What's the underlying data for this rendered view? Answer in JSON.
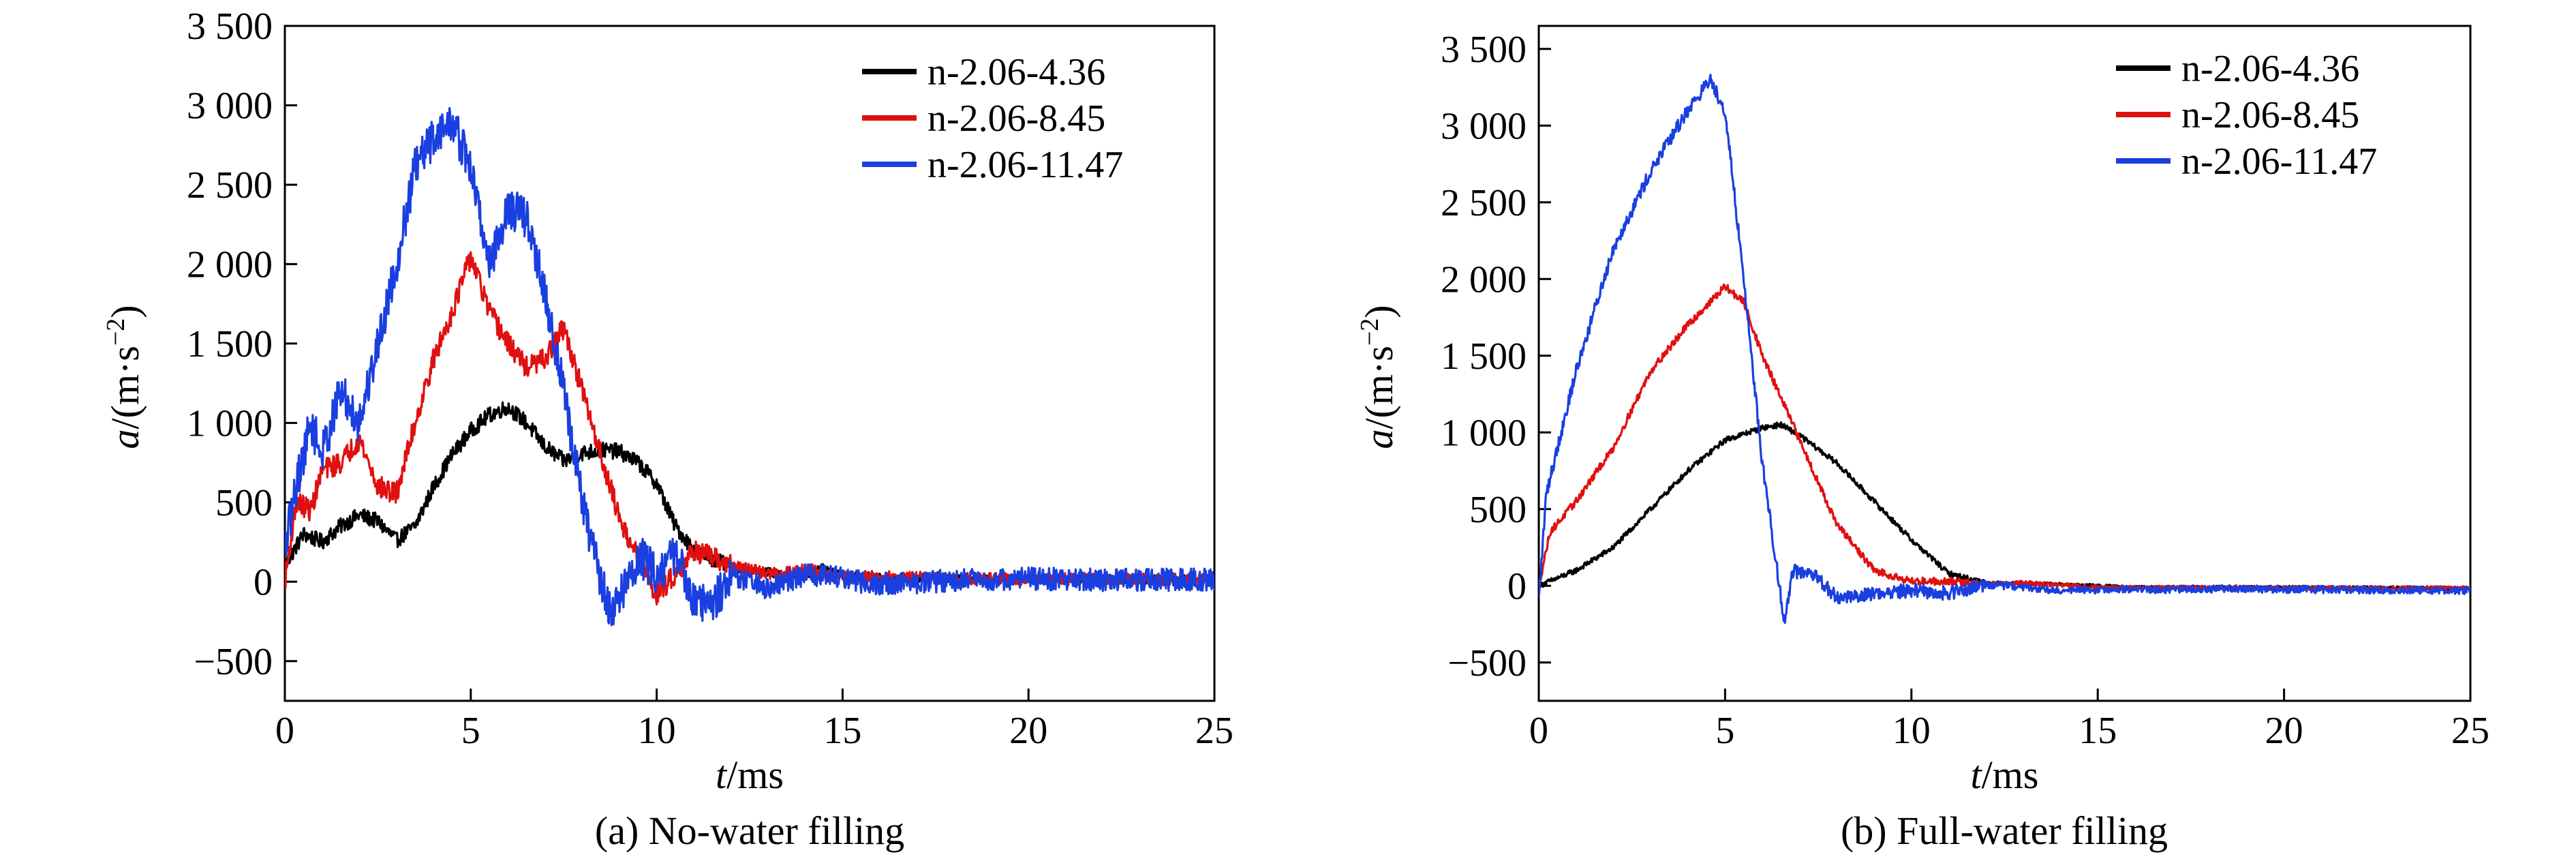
{
  "chart_data": [
    {
      "type": "line",
      "title": "",
      "caption": "(a) No-water filling",
      "xlabel_italic": "t",
      "xlabel_rest": "/ms",
      "ylabel_italic": "a",
      "ylabel_rest": "/(m·s",
      "ylabel_sup": "−2",
      "ylabel_close": ")",
      "xlim": [
        0,
        25
      ],
      "ylim": [
        -750,
        3500
      ],
      "xticks": [
        0,
        5,
        10,
        15,
        20,
        25
      ],
      "xtick_labels": [
        "0",
        "5",
        "10",
        "15",
        "20",
        "25"
      ],
      "yticks": [
        -500,
        0,
        500,
        1000,
        1500,
        2000,
        2500,
        3000,
        3500
      ],
      "ytick_labels": [
        "−500",
        "0",
        "500",
        "1 000",
        "1 500",
        "2 000",
        "2 500",
        "3 000",
        "3 500"
      ],
      "grid": false,
      "legend_position": "top-right",
      "series": [
        {
          "name": "n-2.06-4.36",
          "color": "#000000",
          "noise": 50,
          "points": [
            [
              0,
              100
            ],
            [
              0.5,
              300
            ],
            [
              1,
              250
            ],
            [
              1.5,
              350
            ],
            [
              2,
              420
            ],
            [
              2.5,
              380
            ],
            [
              3,
              260
            ],
            [
              3.5,
              350
            ],
            [
              4,
              600
            ],
            [
              4.5,
              800
            ],
            [
              5,
              950
            ],
            [
              5.5,
              1050
            ],
            [
              6,
              1100
            ],
            [
              6.5,
              1000
            ],
            [
              7,
              850
            ],
            [
              7.5,
              760
            ],
            [
              8,
              810
            ],
            [
              8.5,
              830
            ],
            [
              9,
              820
            ],
            [
              9.5,
              750
            ],
            [
              10,
              620
            ],
            [
              10.5,
              350
            ],
            [
              11,
              200
            ],
            [
              12,
              90
            ],
            [
              13,
              60
            ],
            [
              14,
              30
            ],
            [
              14.5,
              90
            ],
            [
              15,
              40
            ],
            [
              16,
              30
            ],
            [
              18,
              20
            ],
            [
              20,
              15
            ],
            [
              22,
              15
            ],
            [
              25,
              15
            ]
          ]
        },
        {
          "name": "n-2.06-8.45",
          "color": "#e01010",
          "noise": 70,
          "points": [
            [
              0,
              0
            ],
            [
              0.3,
              500
            ],
            [
              0.7,
              450
            ],
            [
              1,
              700
            ],
            [
              1.5,
              750
            ],
            [
              2,
              900
            ],
            [
              2.5,
              600
            ],
            [
              3,
              550
            ],
            [
              3.5,
              1000
            ],
            [
              4,
              1400
            ],
            [
              4.5,
              1700
            ],
            [
              5,
              2050
            ],
            [
              5.5,
              1700
            ],
            [
              6,
              1500
            ],
            [
              6.5,
              1350
            ],
            [
              7,
              1400
            ],
            [
              7.5,
              1600
            ],
            [
              8,
              1200
            ],
            [
              8.5,
              800
            ],
            [
              9,
              400
            ],
            [
              9.5,
              150
            ],
            [
              10,
              -80
            ],
            [
              10.5,
              50
            ],
            [
              11,
              200
            ],
            [
              12,
              100
            ],
            [
              13,
              50
            ],
            [
              14,
              80
            ],
            [
              15,
              30
            ],
            [
              16,
              30
            ],
            [
              18,
              20
            ],
            [
              20,
              15
            ],
            [
              22,
              20
            ],
            [
              25,
              10
            ]
          ]
        },
        {
          "name": "n-2.06-11.47",
          "color": "#1a3fe0",
          "noise": 130,
          "points": [
            [
              0,
              200
            ],
            [
              0.3,
              600
            ],
            [
              0.7,
              1000
            ],
            [
              1,
              800
            ],
            [
              1.5,
              1200
            ],
            [
              2,
              1000
            ],
            [
              2.5,
              1500
            ],
            [
              3,
              2000
            ],
            [
              3.5,
              2600
            ],
            [
              4,
              2800
            ],
            [
              4.5,
              2900
            ],
            [
              5,
              2600
            ],
            [
              5.5,
              2000
            ],
            [
              6,
              2350
            ],
            [
              6.5,
              2300
            ],
            [
              7,
              1800
            ],
            [
              7.5,
              1200
            ],
            [
              8,
              500
            ],
            [
              8.5,
              0
            ],
            [
              8.8,
              -200
            ],
            [
              9.2,
              0
            ],
            [
              9.6,
              150
            ],
            [
              10,
              50
            ],
            [
              10.5,
              180
            ],
            [
              11,
              -100
            ],
            [
              11.5,
              -150
            ],
            [
              12,
              50
            ],
            [
              13,
              -50
            ],
            [
              14,
              50
            ],
            [
              15,
              20
            ],
            [
              16,
              -20
            ],
            [
              18,
              10
            ],
            [
              20,
              20
            ],
            [
              22,
              10
            ],
            [
              25,
              15
            ]
          ]
        }
      ]
    },
    {
      "type": "line",
      "title": "",
      "caption": "(b) Full-water filling",
      "xlabel_italic": "t",
      "xlabel_rest": "/ms",
      "ylabel_italic": "a",
      "ylabel_rest": "/(m·s",
      "ylabel_sup": "−2",
      "ylabel_close": ")",
      "xlim": [
        0,
        25
      ],
      "ylim": [
        -750,
        3650
      ],
      "xticks": [
        0,
        5,
        10,
        15,
        20,
        25
      ],
      "xtick_labels": [
        "0",
        "5",
        "10",
        "15",
        "20",
        "25"
      ],
      "yticks": [
        -500,
        0,
        500,
        1000,
        1500,
        2000,
        2500,
        3000,
        3500
      ],
      "ytick_labels": [
        "−500",
        "0",
        "500",
        "1 000",
        "1 500",
        "2 000",
        "2 500",
        "3 000",
        "3 500"
      ],
      "grid": false,
      "legend_position": "top-right",
      "series": [
        {
          "name": "n-2.06-4.36",
          "color": "#000000",
          "noise": 18,
          "points": [
            [
              0,
              0
            ],
            [
              1,
              100
            ],
            [
              2,
              250
            ],
            [
              3,
              500
            ],
            [
              4,
              750
            ],
            [
              5,
              950
            ],
            [
              6,
              1030
            ],
            [
              6.5,
              1050
            ],
            [
              7,
              980
            ],
            [
              8,
              800
            ],
            [
              9,
              550
            ],
            [
              10,
              300
            ],
            [
              11,
              80
            ],
            [
              12,
              20
            ],
            [
              14,
              10
            ],
            [
              16,
              -10
            ],
            [
              20,
              -10
            ],
            [
              25,
              -15
            ]
          ]
        },
        {
          "name": "n-2.06-8.45",
          "color": "#e01010",
          "noise": 25,
          "points": [
            [
              0,
              0
            ],
            [
              0.3,
              350
            ],
            [
              1,
              550
            ],
            [
              2,
              900
            ],
            [
              3,
              1400
            ],
            [
              4,
              1700
            ],
            [
              5,
              1950
            ],
            [
              5.5,
              1850
            ],
            [
              6,
              1500
            ],
            [
              7,
              950
            ],
            [
              8,
              400
            ],
            [
              9,
              100
            ],
            [
              10,
              30
            ],
            [
              11,
              30
            ],
            [
              12,
              10
            ],
            [
              13,
              20
            ],
            [
              15,
              -10
            ],
            [
              20,
              -15
            ],
            [
              25,
              -15
            ]
          ]
        },
        {
          "name": "n-2.06-11.47",
          "color": "#1a3fe0",
          "noise": 45,
          "points": [
            [
              0,
              -100
            ],
            [
              0.2,
              600
            ],
            [
              0.5,
              900
            ],
            [
              1,
              1400
            ],
            [
              2,
              2200
            ],
            [
              3,
              2700
            ],
            [
              4,
              3100
            ],
            [
              4.6,
              3300
            ],
            [
              5,
              3100
            ],
            [
              5.5,
              2000
            ],
            [
              6,
              800
            ],
            [
              6.4,
              100
            ],
            [
              6.6,
              -250
            ],
            [
              6.8,
              100
            ],
            [
              7.5,
              50
            ],
            [
              8,
              -80
            ],
            [
              9,
              -50
            ],
            [
              10,
              -30
            ],
            [
              11,
              -50
            ],
            [
              12,
              10
            ],
            [
              14,
              -30
            ],
            [
              18,
              -20
            ],
            [
              25,
              -30
            ]
          ]
        }
      ]
    }
  ]
}
